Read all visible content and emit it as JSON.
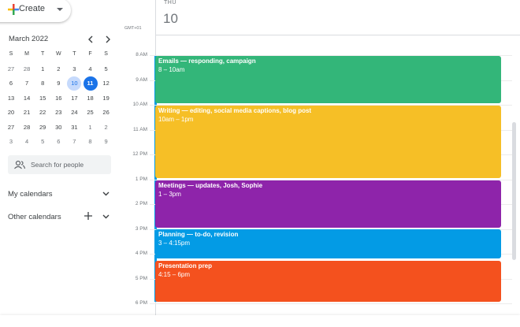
{
  "create": "Create",
  "mini_calendar": {
    "month": "March 2022",
    "weekdays": [
      "S",
      "M",
      "T",
      "W",
      "T",
      "F",
      "S"
    ],
    "weeks": [
      [
        "27",
        "28",
        "1",
        "2",
        "3",
        "4",
        "5"
      ],
      [
        "6",
        "7",
        "8",
        "9",
        "10",
        "11",
        "12"
      ],
      [
        "13",
        "14",
        "15",
        "16",
        "17",
        "18",
        "19"
      ],
      [
        "20",
        "21",
        "22",
        "23",
        "24",
        "25",
        "26"
      ],
      [
        "27",
        "28",
        "29",
        "30",
        "31",
        "1",
        "2"
      ],
      [
        "3",
        "4",
        "5",
        "6",
        "7",
        "8",
        "9"
      ]
    ]
  },
  "search": "Search for people",
  "my_calendars": "My calendars",
  "other_calendars": "Other calendars",
  "day": {
    "weekday": "THU",
    "date": "10"
  },
  "timezone": "GMT+01",
  "hours": [
    "8 AM",
    "9 AM",
    "10 AM",
    "11 AM",
    "12 PM",
    "1 PM",
    "2 PM",
    "3 PM",
    "4 PM",
    "5 PM",
    "6 PM"
  ],
  "events": [
    {
      "title": "Emails — responding, campaign",
      "time": "8 – 10am",
      "color": "#33b679"
    },
    {
      "title": "Writing — editing, social media captions, blog post",
      "time": "10am – 1pm",
      "color": "#f6bf26"
    },
    {
      "title": "Meetings — updates, Josh, Sophie",
      "time": "1 – 3pm",
      "color": "#8e24aa"
    },
    {
      "title": "Planning — to-do, revision",
      "time": "3 – 4:15pm",
      "color": "#039be5"
    },
    {
      "title": "Presentation prep",
      "time": "4:15 – 6pm",
      "color": "#f4511e"
    }
  ]
}
